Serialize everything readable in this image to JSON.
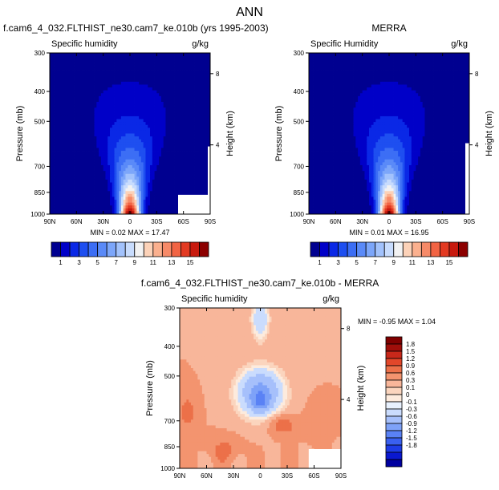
{
  "figure_title": "ANN",
  "colors": {
    "abs_scale": [
      "#000090",
      "#0000c8",
      "#0a28e6",
      "#1e4ff0",
      "#3c6ef5",
      "#5a8af8",
      "#7ca6fa",
      "#a2c2fc",
      "#c8dcfd",
      "#f2f2f2",
      "#fcd2b8",
      "#fbb08e",
      "#f78a68",
      "#f26444",
      "#e33a22",
      "#c81a0e",
      "#8c0000"
    ],
    "diff_scale": [
      "#0000a0",
      "#0a18d0",
      "#1e3ce6",
      "#3a60f0",
      "#5a82f5",
      "#7ea2f8",
      "#a6c0fb",
      "#cadcfd",
      "#e8f1fe",
      "#fdebdd",
      "#fbd5be",
      "#f8b69a",
      "#f3946f",
      "#ec7049",
      "#e2472a",
      "#c8281a",
      "#a00e0a",
      "#800000"
    ],
    "mask": "#ffffff"
  },
  "chart_data": [
    {
      "type": "heatmap",
      "title": "f.cam6_4_032.FLTHIST_ne30.cam7_ke.010b (yrs 1995-2003)",
      "subtitle_left": "Specific humidity",
      "units": "g/kg",
      "ylabel": "Pressure (mb)",
      "ylabel_right": "Height (km)",
      "xticks": [
        "90N",
        "60N",
        "30N",
        "0",
        "30S",
        "60S",
        "90S"
      ],
      "yticks": [
        "300",
        "400",
        "500",
        "700",
        "850",
        "1000"
      ],
      "yticks_right": [
        "8",
        "4"
      ],
      "stats": "MIN =  0.02  MAX = 17.47",
      "min": 0.02,
      "max": 17.47,
      "colorbar_labels": [
        "1",
        "3",
        "5",
        "7",
        "9",
        "11",
        "13",
        "15"
      ]
    },
    {
      "type": "heatmap",
      "title": "MERRA",
      "subtitle_left": "Specific Humidity",
      "units": "g/kg",
      "ylabel": "Pressure (mb)",
      "ylabel_right": "Height (km)",
      "xticks": [
        "90N",
        "60N",
        "30N",
        "0",
        "30S",
        "60S",
        "90S"
      ],
      "yticks": [
        "300",
        "400",
        "500",
        "700",
        "850",
        "1000"
      ],
      "yticks_right": [
        "8",
        "4"
      ],
      "stats": "MIN =  0.01  MAX = 16.95",
      "min": 0.01,
      "max": 16.95,
      "colorbar_labels": [
        "1",
        "3",
        "5",
        "7",
        "9",
        "11",
        "13",
        "15"
      ]
    },
    {
      "type": "heatmap",
      "title": "f.cam6_4_032.FLTHIST_ne30.cam7_ke.010b - MERRA",
      "subtitle_left": "Specific humidity",
      "units": "g/kg",
      "ylabel": "Pressure (mb)",
      "ylabel_right": "Height (km)",
      "xticks": [
        "90N",
        "60N",
        "30N",
        "0",
        "30S",
        "60S",
        "90S"
      ],
      "yticks": [
        "300",
        "400",
        "500",
        "700",
        "850",
        "1000"
      ],
      "yticks_right": [
        "8",
        "4"
      ],
      "stats": "MIN = -0.95  MAX =  1.04",
      "min": -0.95,
      "max": 1.04,
      "colorbar_labels": [
        "1.8",
        "1.5",
        "1.2",
        "0.9",
        "0.6",
        "0.3",
        "0.1",
        "0",
        "-0.1",
        "-0.3",
        "-0.6",
        "-0.9",
        "-1.2",
        "-1.5",
        "-1.8"
      ]
    }
  ]
}
